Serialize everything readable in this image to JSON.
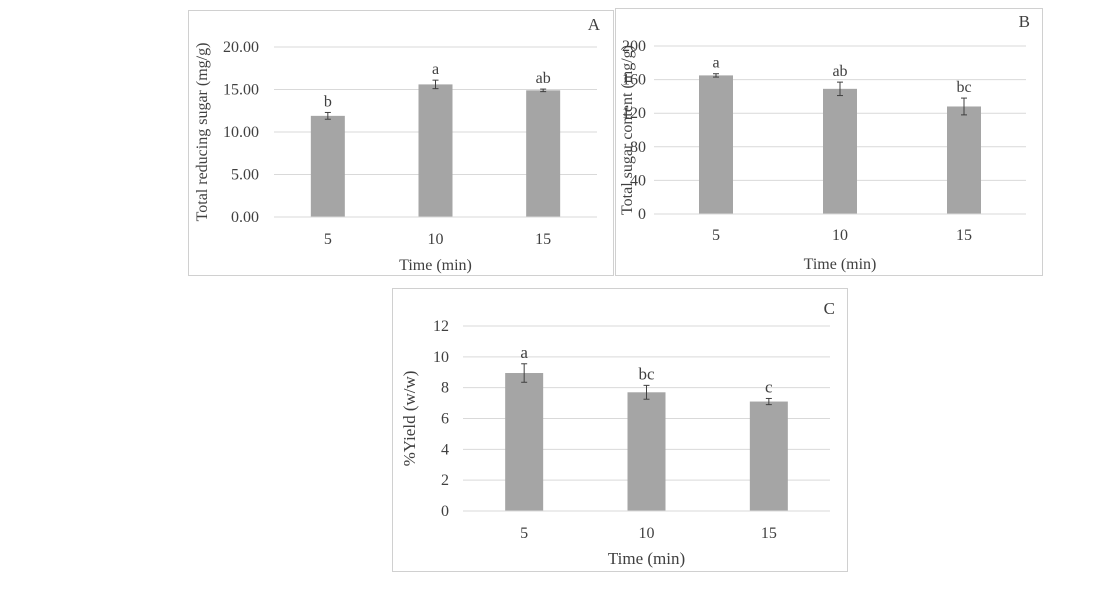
{
  "colors": {
    "bar": "#a5a5a5",
    "grid": "#d9d9d9",
    "text": "#404040",
    "error": "#404040"
  },
  "chart_data": [
    {
      "type": "bar",
      "panel_label": "A",
      "xlabel": "Time (min)",
      "ylabel": "Total reducing sugar (mg/g)",
      "categories": [
        "5",
        "10",
        "15"
      ],
      "values": [
        11.9,
        15.6,
        14.9
      ],
      "errors": [
        0.4,
        0.5,
        0.15
      ],
      "letters": [
        "b",
        "a",
        "ab"
      ],
      "yticks": [
        "0.00",
        "5.00",
        "10.00",
        "15.00",
        "20.00"
      ],
      "ylim": [
        0,
        20
      ],
      "grid": true
    },
    {
      "type": "bar",
      "panel_label": "B",
      "xlabel": "Time (min)",
      "ylabel": "Total sugar content (mg/g)",
      "categories": [
        "5",
        "10",
        "15"
      ],
      "values": [
        165,
        149,
        128
      ],
      "errors": [
        2,
        8,
        10
      ],
      "letters": [
        "a",
        "ab",
        "bc"
      ],
      "yticks": [
        "0",
        "40",
        "80",
        "120",
        "160",
        "200"
      ],
      "ylim": [
        0,
        200
      ],
      "grid": true
    },
    {
      "type": "bar",
      "panel_label": "C",
      "xlabel": "Time (min)",
      "ylabel": "%Yield (w/w)",
      "categories": [
        "5",
        "10",
        "15"
      ],
      "values": [
        8.95,
        7.7,
        7.1
      ],
      "errors": [
        0.6,
        0.45,
        0.2
      ],
      "letters": [
        "a",
        "bc",
        "c"
      ],
      "yticks": [
        "0",
        "2",
        "4",
        "6",
        "8",
        "10",
        "12"
      ],
      "ylim": [
        0,
        12
      ],
      "grid": true
    }
  ]
}
